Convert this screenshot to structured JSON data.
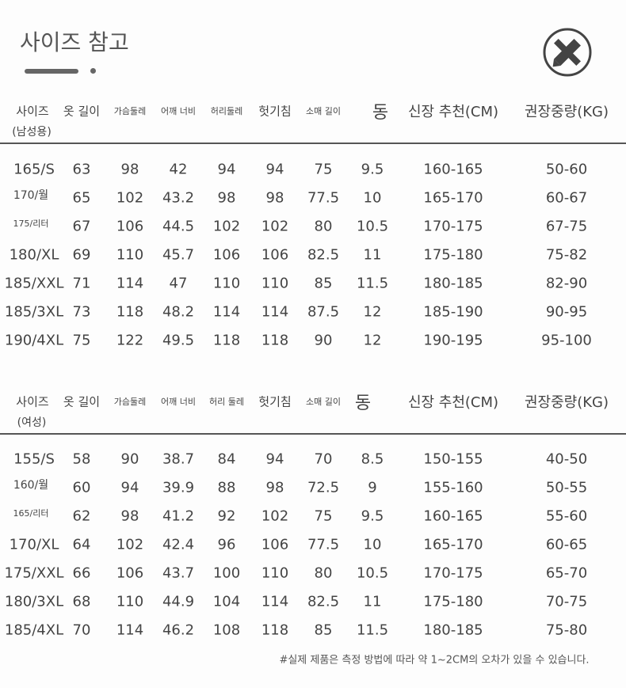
{
  "header": {
    "title": "사이즈 참고"
  },
  "tables": [
    {
      "columns": [
        "사이즈",
        "옷 길이",
        "가슴둘레",
        "어깨 너비",
        "허리둘레",
        "헛기침",
        "소매 길이",
        "동",
        "신장 추천(CM)",
        "권장중량(KG)"
      ],
      "subtitle": "(남성용)",
      "rows": [
        [
          "165/S",
          "63",
          "98",
          "42",
          "94",
          "94",
          "75",
          "9.5",
          "160-165",
          "50-60"
        ],
        [
          "170/월",
          "65",
          "102",
          "43.2",
          "98",
          "98",
          "77.5",
          "10",
          "165-170",
          "60-67"
        ],
        [
          "175/리터",
          "67",
          "106",
          "44.5",
          "102",
          "102",
          "80",
          "10.5",
          "170-175",
          "67-75"
        ],
        [
          "180/XL",
          "69",
          "110",
          "45.7",
          "106",
          "106",
          "82.5",
          "11",
          "175-180",
          "75-82"
        ],
        [
          "185/XXL",
          "71",
          "114",
          "47",
          "110",
          "110",
          "85",
          "11.5",
          "180-185",
          "82-90"
        ],
        [
          "185/3XL",
          "73",
          "118",
          "48.2",
          "114",
          "114",
          "87.5",
          "12",
          "185-190",
          "90-95"
        ],
        [
          "190/4XL",
          "75",
          "122",
          "49.5",
          "118",
          "118",
          "90",
          "12",
          "190-195",
          "95-100"
        ]
      ]
    },
    {
      "columns": [
        "사이즈",
        "옷 길이",
        "가슴둘레",
        "어깨 너비",
        "허리 둘레",
        "헛기침",
        "소매 길이",
        "동",
        "신장 추천(CM)",
        "권장중량(KG)"
      ],
      "subtitle": "(여성)",
      "rows": [
        [
          "155/S",
          "58",
          "90",
          "38.7",
          "84",
          "94",
          "70",
          "8.5",
          "150-155",
          "40-50"
        ],
        [
          "160/월",
          "60",
          "94",
          "39.9",
          "88",
          "98",
          "72.5",
          "9",
          "155-160",
          "50-55"
        ],
        [
          "165/리터",
          "62",
          "98",
          "41.2",
          "92",
          "102",
          "75",
          "9.5",
          "160-165",
          "55-60"
        ],
        [
          "170/XL",
          "64",
          "102",
          "42.4",
          "96",
          "106",
          "77.5",
          "10",
          "165-170",
          "60-65"
        ],
        [
          "175/XXL",
          "66",
          "106",
          "43.7",
          "100",
          "110",
          "80",
          "10.5",
          "170-175",
          "65-70"
        ],
        [
          "180/3XL",
          "68",
          "110",
          "44.9",
          "104",
          "114",
          "82.5",
          "11",
          "175-180",
          "70-75"
        ],
        [
          "185/4XL",
          "70",
          "114",
          "46.2",
          "108",
          "118",
          "85",
          "11.5",
          "180-185",
          "75-80"
        ]
      ]
    }
  ],
  "footnote": "#실제 제품은 측정 방법에 따라 약 1~2CM의 오차가 있을 수 있습니다."
}
